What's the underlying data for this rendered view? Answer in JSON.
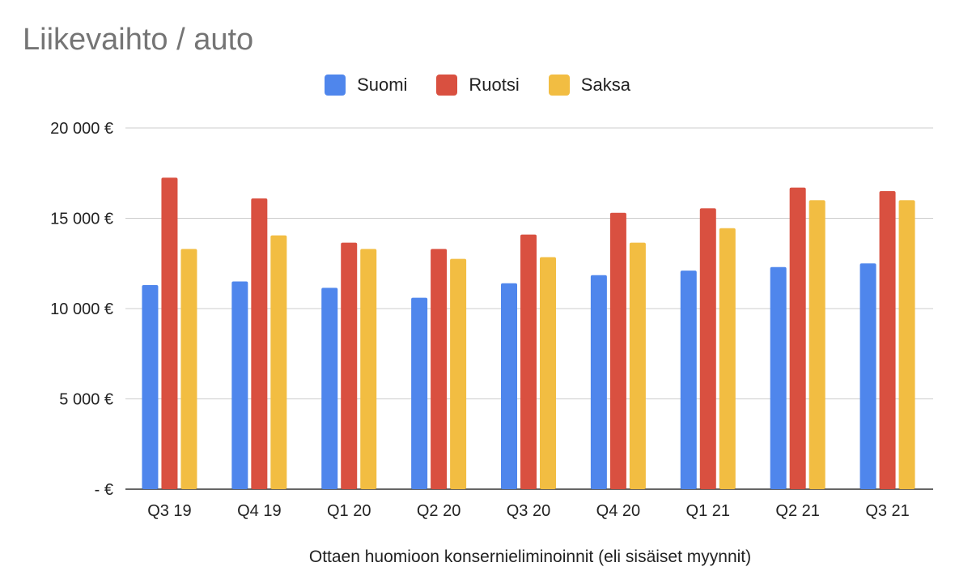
{
  "colors": {
    "Suomi": "#4F86EC",
    "Ruotsi": "#D95040",
    "Saksa": "#F2BD42"
  },
  "chart_data": {
    "type": "bar",
    "title": "Liikevaihto / auto",
    "xlabel": "Ottaen huomioon konsernieliminoinnit (eli sisäiset myynnit)",
    "ylabel": "",
    "ylim": [
      0,
      20000
    ],
    "yticks": [
      0,
      5000,
      10000,
      15000,
      20000
    ],
    "ytick_labels": [
      "-  €",
      "5 000 €",
      "10 000 €",
      "15 000 €",
      "20 000 €"
    ],
    "grid": true,
    "legend_position": "top-center",
    "categories": [
      "Q3 19",
      "Q4 19",
      "Q1 20",
      "Q2 20",
      "Q3 20",
      "Q4 20",
      "Q1 21",
      "Q2 21",
      "Q3 21"
    ],
    "series": [
      {
        "name": "Suomi",
        "values": [
          11300,
          11500,
          11150,
          10600,
          11400,
          11850,
          12100,
          12300,
          12500
        ]
      },
      {
        "name": "Ruotsi",
        "values": [
          17250,
          16100,
          13650,
          13300,
          14100,
          15300,
          15550,
          16700,
          16500
        ]
      },
      {
        "name": "Saksa",
        "values": [
          13300,
          14050,
          13300,
          12750,
          12850,
          13650,
          14450,
          16000,
          16000
        ]
      }
    ]
  }
}
